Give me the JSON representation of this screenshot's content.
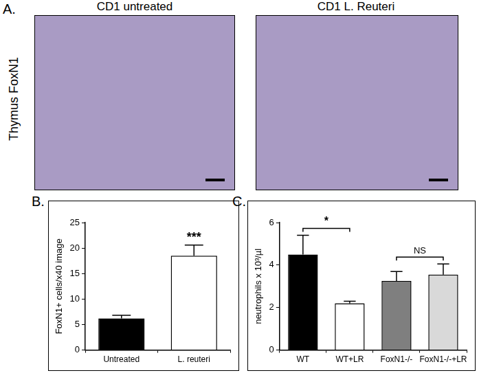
{
  "panel_a": {
    "panel_label": "A.",
    "row_label": "Thymus FoxN1",
    "images": [
      {
        "title": "CD1 untreated"
      },
      {
        "title": "CD1 L. Reuteri"
      }
    ]
  },
  "chart_data": [
    {
      "panel_label": "B.",
      "type": "bar",
      "categories": [
        "Untreated",
        "L. reuteri"
      ],
      "values": [
        6.2,
        18.5
      ],
      "errors": [
        0.6,
        2.1
      ],
      "colors": [
        "#000000",
        "#ffffff"
      ],
      "y_label": "FoxN1+ cells/x40 image",
      "ylim": [
        0,
        25
      ],
      "yticks": [
        0,
        5,
        10,
        15,
        20,
        25
      ],
      "grid": false,
      "annotations": [
        {
          "text": "***",
          "category": "L. reuteri"
        }
      ]
    },
    {
      "panel_label": "C.",
      "type": "bar",
      "categories": [
        "WT",
        "WT+LR",
        "FoxN1-/-",
        "FoxN1-/-+LR"
      ],
      "values": [
        4.5,
        2.2,
        3.25,
        3.55
      ],
      "errors": [
        0.9,
        0.1,
        0.45,
        0.5
      ],
      "colors": [
        "#000000",
        "#ffffff",
        "#7f7f7f",
        "#d9d9d9"
      ],
      "y_label": "neutrophils x 10³/µl",
      "ylim": [
        0,
        6
      ],
      "yticks": [
        0,
        2,
        4,
        6
      ],
      "grid": false,
      "annotations": [
        {
          "text": "*",
          "from": "WT",
          "to": "WT+LR"
        },
        {
          "text": "NS",
          "from": "FoxN1-/-",
          "to": "FoxN1-/-+LR"
        }
      ]
    }
  ]
}
